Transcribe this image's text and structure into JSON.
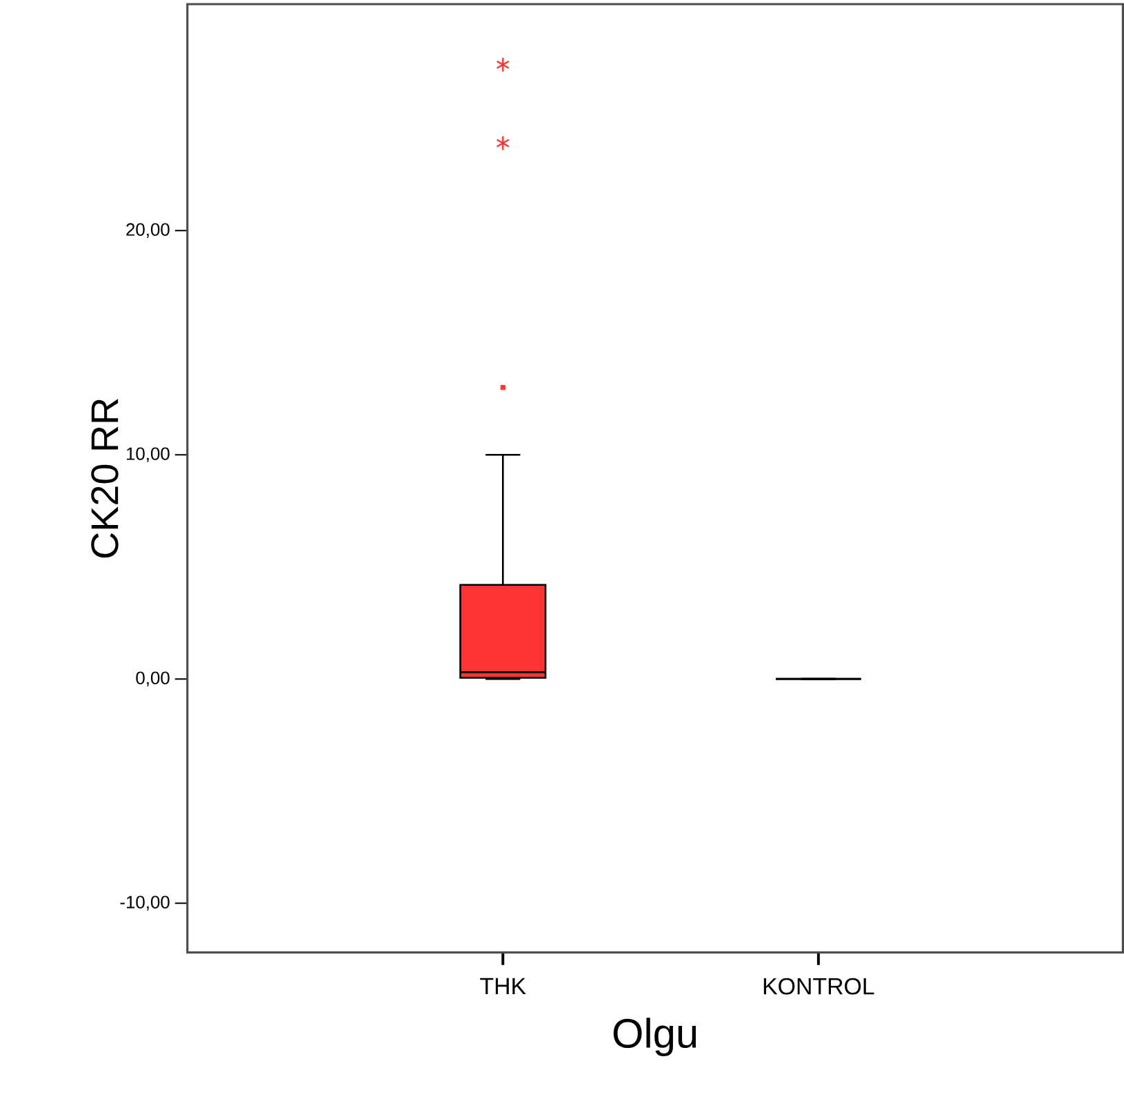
{
  "chart_data": {
    "type": "box",
    "xlabel": "Olgu",
    "ylabel": "CK20 RR",
    "categories": [
      "THK",
      "KONTROL"
    ],
    "colors": [
      "#ff3333",
      "#000000"
    ],
    "boxes": [
      {
        "low": 0,
        "q1": 0.05,
        "median": 0.3,
        "q3": 4.2,
        "high": 10.0,
        "outliers": [
          13.0,
          23.9,
          27.4
        ]
      },
      {
        "low": 0,
        "q1": 0,
        "median": 0,
        "q3": 0,
        "high": 0
      }
    ],
    "ylim": [
      -12.2,
      30.1
    ],
    "yticks": [
      {
        "value": -10,
        "label": "-10,00"
      },
      {
        "value": 0,
        "label": "0,00"
      },
      {
        "value": 10,
        "label": "10,00"
      },
      {
        "value": 20,
        "label": "20,00"
      }
    ],
    "grid": false
  }
}
